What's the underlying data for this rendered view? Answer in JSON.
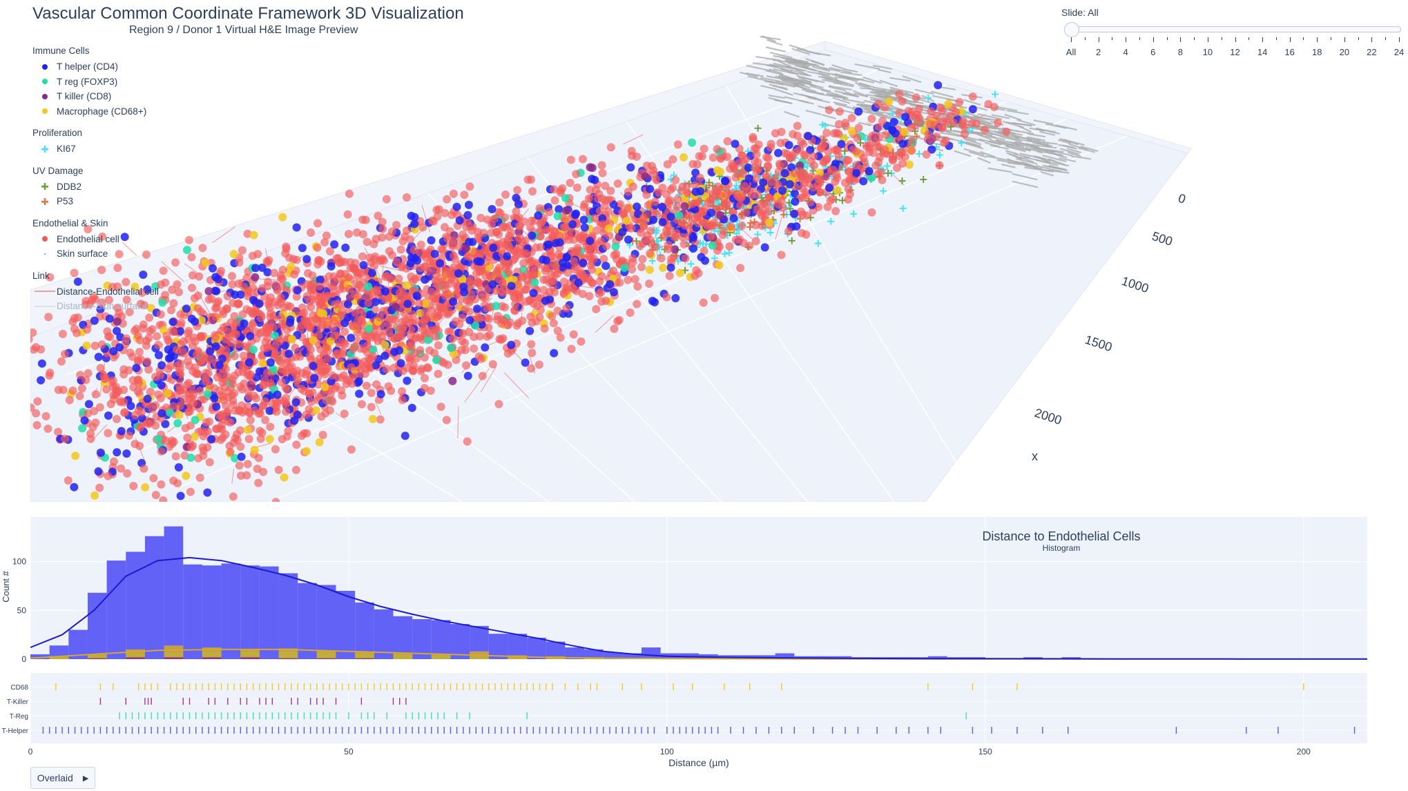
{
  "page": {
    "title": "Vascular Common Coordinate Framework 3D Visualization",
    "subtitle": "Region 9 / Donor 1  Virtual H&E Image Preview"
  },
  "legend": {
    "groups": [
      {
        "title": "Immune Cells",
        "items": [
          {
            "label": "T helper (CD4)",
            "color": "#2222ee",
            "symbol": "dot"
          },
          {
            "label": "T reg (FOXP3)",
            "color": "#22ddaa",
            "symbol": "dot"
          },
          {
            "label": "T killer (CD8)",
            "color": "#8b2a8b",
            "symbol": "dot"
          },
          {
            "label": "Macrophage (CD68+)",
            "color": "#f2c81d",
            "symbol": "dot"
          }
        ]
      },
      {
        "title": "Proliferation",
        "items": [
          {
            "label": "KI67",
            "color": "#44e4f4",
            "symbol": "cross"
          }
        ]
      },
      {
        "title": "UV Damage",
        "items": [
          {
            "label": "DDB2",
            "color": "#6e9e3a",
            "symbol": "cross"
          },
          {
            "label": "P53",
            "color": "#e0744a",
            "symbol": "cross"
          }
        ]
      },
      {
        "title": "Endothelial & Skin",
        "items": [
          {
            "label": "Endothelial cell",
            "color": "#f25b5b",
            "symbol": "dot"
          },
          {
            "label": "Skin surface",
            "color": "#9a9a9a",
            "symbol": "tinydot"
          }
        ]
      },
      {
        "title": "Link",
        "items": [
          {
            "label": "Distance-Endothelial cell",
            "color": "#f08080",
            "symbol": "line"
          },
          {
            "label": "Distance-Skin surface",
            "color": "#d9d9d9",
            "symbol": "line",
            "faded": true
          }
        ]
      }
    ]
  },
  "slider": {
    "label": "Slide: All",
    "ticks": [
      "All",
      "2",
      "4",
      "6",
      "8",
      "10",
      "12",
      "14",
      "16",
      "18",
      "20",
      "22",
      "24"
    ]
  },
  "scene3d": {
    "axis_title": "x",
    "x_ticks": [
      "0",
      "500",
      "1000",
      "1500",
      "2000"
    ]
  },
  "controls": {
    "play_button_label": "Overlaid",
    "play_icon": "play-icon"
  },
  "chart_data": [
    {
      "type": "bar",
      "title": "Distance to Endothelial Cells",
      "subtitle": "Histogram",
      "xlabel": "Distance (µm)",
      "ylabel": "Count #",
      "xlim": [
        0,
        210
      ],
      "ylim": [
        0,
        140
      ],
      "yticks": [
        0,
        50,
        100
      ],
      "xticks": [
        0,
        50,
        100,
        150,
        200
      ],
      "bin_width": 3,
      "series": [
        {
          "name": "T-Helper",
          "color": "#5a5af5",
          "bin_starts": [
            0,
            3,
            6,
            9,
            12,
            15,
            18,
            21,
            24,
            27,
            30,
            33,
            36,
            39,
            42,
            45,
            48,
            51,
            54,
            57,
            60,
            63,
            66,
            69,
            72,
            75,
            78,
            81,
            84,
            87,
            90,
            93,
            96,
            99,
            102,
            105,
            108,
            111,
            114,
            117,
            120,
            123,
            126,
            129,
            132,
            135,
            138,
            141,
            144,
            147,
            150,
            153,
            156,
            159,
            162,
            165
          ],
          "values": [
            5,
            14,
            30,
            68,
            101,
            110,
            126,
            136,
            97,
            96,
            98,
            96,
            95,
            88,
            78,
            76,
            70,
            58,
            51,
            44,
            41,
            40,
            36,
            34,
            26,
            26,
            22,
            18,
            12,
            10,
            7,
            6,
            12,
            6,
            6,
            5,
            4,
            4,
            4,
            6,
            3,
            3,
            3,
            2,
            2,
            2,
            2,
            3,
            2,
            2,
            1,
            1,
            2,
            1,
            2,
            1
          ]
        },
        {
          "name": "T-Reg",
          "color": "#3fd08a",
          "bin_starts": [
            3,
            9,
            15,
            21,
            27,
            33,
            39,
            45,
            51,
            57,
            63,
            69,
            75,
            81,
            87
          ],
          "values": [
            2,
            4,
            6,
            7,
            8,
            8,
            8,
            7,
            6,
            5,
            4,
            3,
            2,
            2,
            1
          ]
        },
        {
          "name": "CD68",
          "color": "#d6a92a",
          "bin_starts": [
            3,
            9,
            15,
            21,
            27,
            33,
            39,
            45,
            51,
            57,
            63,
            69,
            75,
            81,
            87
          ],
          "values": [
            3,
            5,
            10,
            14,
            12,
            10,
            11,
            9,
            8,
            6,
            5,
            8,
            4,
            3,
            2
          ]
        },
        {
          "name": "T-Killer",
          "color": "#8b2a8b",
          "bin_starts": [
            9,
            15,
            21,
            27,
            33,
            39,
            45,
            51
          ],
          "values": [
            1,
            2,
            2,
            2,
            2,
            1,
            1,
            1
          ]
        }
      ],
      "density_curve": {
        "color": "#1a1ad0",
        "x": [
          0,
          5,
          10,
          15,
          20,
          25,
          30,
          35,
          40,
          45,
          50,
          55,
          60,
          65,
          70,
          75,
          80,
          85,
          90,
          95,
          100,
          110,
          120,
          130,
          140,
          150,
          160,
          170,
          180,
          190,
          200,
          210
        ],
        "y": [
          12,
          25,
          50,
          85,
          101,
          104,
          101,
          94,
          86,
          76,
          64,
          54,
          46,
          39,
          33,
          27,
          21,
          14,
          8,
          5,
          3,
          1.8,
          1.2,
          0.8,
          0.6,
          0.5,
          0.4,
          0.3,
          0.3,
          0.2,
          0.2,
          0.2
        ]
      },
      "total_curve": {
        "color": "#d6a92a",
        "x": [
          0,
          10,
          20,
          30,
          40,
          50,
          60,
          70,
          80,
          90,
          100,
          120,
          150,
          210
        ],
        "y": [
          1,
          5,
          9,
          10,
          10,
          8,
          6,
          4,
          2,
          1,
          0.5,
          0.2,
          0.1,
          0
        ]
      }
    },
    {
      "type": "scatter",
      "title": "",
      "xlabel": "Distance (µm)",
      "xlim": [
        0,
        210
      ],
      "categories": [
        "CD68",
        "T-Killer",
        "T-Reg",
        "T-Helper"
      ],
      "series": [
        {
          "name": "CD68",
          "color": "#f2c81d",
          "x": [
            4,
            11,
            13,
            17,
            18,
            19,
            20,
            22,
            23,
            24,
            25,
            26,
            27,
            28,
            29,
            30,
            31,
            32,
            33,
            34,
            35,
            36,
            37,
            38,
            39,
            40,
            41,
            42,
            43,
            44,
            45,
            46,
            47,
            48,
            49,
            50,
            51,
            52,
            53,
            54,
            55,
            56,
            57,
            58,
            59,
            60,
            61,
            62,
            63,
            64,
            65,
            66,
            67,
            68,
            69,
            70,
            71,
            72,
            73,
            74,
            75,
            76,
            77,
            78,
            79,
            80,
            81,
            82,
            84,
            86,
            88,
            89,
            93,
            96,
            101,
            104,
            109,
            113,
            118,
            141,
            148,
            155,
            200
          ]
        },
        {
          "name": "T-Killer",
          "color": "#b0308a",
          "x": [
            11,
            15,
            18,
            18.5,
            19,
            24,
            25,
            28,
            29,
            31,
            33,
            34,
            36,
            37,
            38,
            41,
            42,
            44,
            45,
            46,
            48,
            52,
            57,
            58,
            59
          ]
        },
        {
          "name": "T-Reg",
          "color": "#3ae0b0",
          "x": [
            14,
            15,
            16,
            17,
            18,
            19,
            20,
            21,
            22,
            23,
            24,
            25,
            26,
            27,
            28,
            29,
            30,
            31,
            32,
            33,
            34,
            35,
            36,
            37,
            38,
            39,
            40,
            41,
            42,
            43,
            44,
            45,
            46,
            47,
            48,
            50,
            52,
            53,
            54,
            56,
            59,
            60,
            61,
            62,
            63,
            64,
            65,
            67,
            69,
            78,
            147
          ]
        },
        {
          "name": "T-Helper",
          "color": "#5a5af5",
          "x": [
            2,
            3,
            4,
            5,
            6,
            7,
            8,
            9,
            10,
            11,
            12,
            13,
            14,
            15,
            16,
            17,
            18,
            19,
            20,
            21,
            22,
            23,
            24,
            25,
            26,
            27,
            28,
            29,
            30,
            31,
            32,
            33,
            34,
            35,
            36,
            37,
            38,
            39,
            40,
            41,
            42,
            43,
            44,
            45,
            46,
            47,
            48,
            49,
            50,
            51,
            52,
            53,
            54,
            55,
            56,
            57,
            58,
            59,
            60,
            61,
            62,
            63,
            64,
            65,
            66,
            67,
            68,
            69,
            70,
            71,
            72,
            73,
            74,
            75,
            76,
            77,
            78,
            79,
            80,
            81,
            82,
            83,
            84,
            85,
            86,
            87,
            88,
            89,
            90,
            91,
            92,
            93,
            94,
            95,
            96,
            97,
            98,
            100,
            101,
            102,
            103,
            104,
            105,
            106,
            107,
            108,
            110,
            112,
            114,
            116,
            118,
            120,
            123,
            126,
            128,
            130,
            133,
            136,
            138,
            141,
            143,
            148,
            151,
            155,
            159,
            163,
            180,
            191,
            196,
            208
          ]
        }
      ]
    }
  ]
}
